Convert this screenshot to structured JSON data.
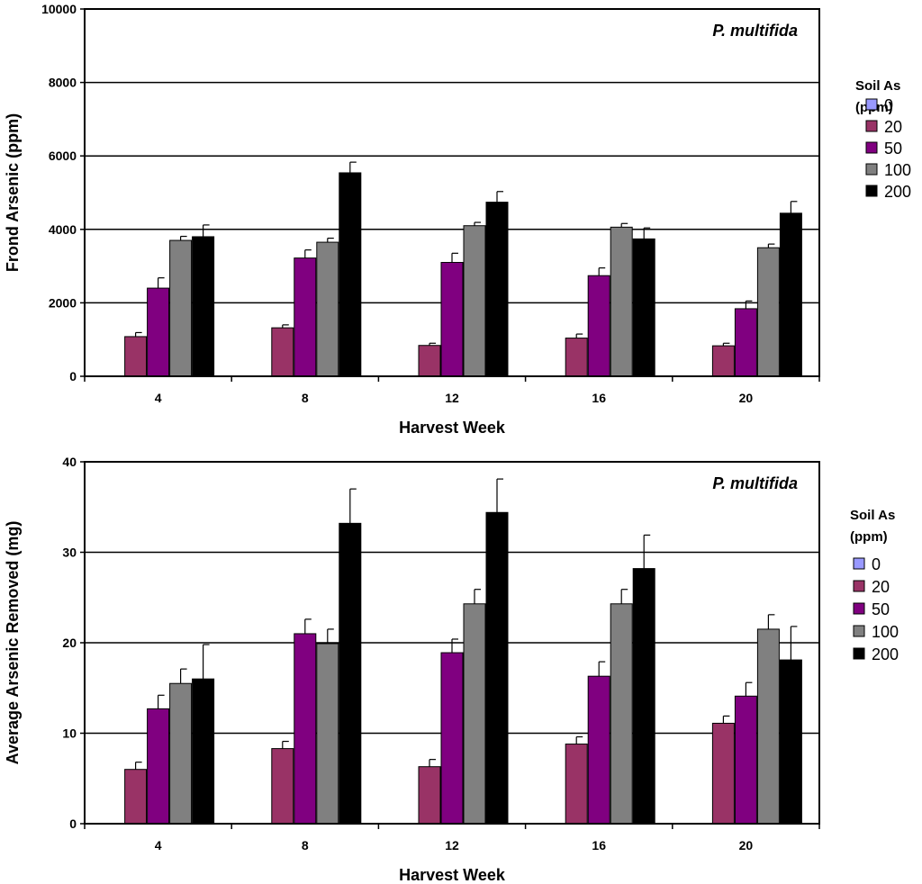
{
  "chart_data": [
    {
      "type": "bar",
      "title": "P. multifida",
      "xlabel": "Harvest Week",
      "ylabel": "Frond Arsenic (ppm)",
      "ylim": [
        0,
        10000
      ],
      "yticks": [
        0,
        2000,
        4000,
        6000,
        8000,
        10000
      ],
      "grid": true,
      "categories": [
        "4",
        "8",
        "12",
        "16",
        "20"
      ],
      "legend": {
        "title_line1": "Soil As",
        "title_line2": "(ppm)",
        "placement": "right"
      },
      "series": [
        {
          "name": "0",
          "color": "#9999ff",
          "values": [
            0,
            0,
            0,
            0,
            0
          ],
          "errors": [
            0,
            0,
            0,
            0,
            0
          ]
        },
        {
          "name": "20",
          "color": "#993366",
          "values": [
            1080,
            1320,
            840,
            1040,
            830
          ],
          "errors": [
            110,
            80,
            60,
            110,
            70
          ]
        },
        {
          "name": "50",
          "color": "#800080",
          "values": [
            2400,
            3220,
            3100,
            2740,
            1840
          ],
          "errors": [
            280,
            220,
            250,
            210,
            210
          ]
        },
        {
          "name": "100",
          "color": "#808080",
          "values": [
            3700,
            3650,
            4100,
            4060,
            3500
          ],
          "errors": [
            110,
            110,
            90,
            100,
            100
          ]
        },
        {
          "name": "200",
          "color": "#000000",
          "values": [
            3800,
            5540,
            4740,
            3740,
            4440
          ],
          "errors": [
            320,
            290,
            290,
            300,
            320
          ]
        }
      ]
    },
    {
      "type": "bar",
      "title": "P. multifida",
      "xlabel": "Harvest Week",
      "ylabel": "Average Arsenic Removed (mg)",
      "ylim": [
        0,
        40
      ],
      "yticks": [
        0,
        10,
        20,
        30,
        40
      ],
      "grid": true,
      "categories": [
        "4",
        "8",
        "12",
        "16",
        "20"
      ],
      "legend": {
        "title_line1": "Soil As",
        "title_line2": "(ppm)",
        "placement": "right"
      },
      "series": [
        {
          "name": "0",
          "color": "#9999ff",
          "values": [
            0,
            0,
            0,
            0,
            0
          ],
          "errors": [
            0,
            0,
            0,
            0,
            0
          ]
        },
        {
          "name": "20",
          "color": "#993366",
          "values": [
            6.0,
            8.3,
            6.3,
            8.8,
            11.1
          ],
          "errors": [
            0.8,
            0.8,
            0.8,
            0.8,
            0.8
          ]
        },
        {
          "name": "50",
          "color": "#800080",
          "values": [
            12.7,
            21.0,
            18.9,
            16.3,
            14.1
          ],
          "errors": [
            1.5,
            1.6,
            1.5,
            1.6,
            1.5
          ]
        },
        {
          "name": "100",
          "color": "#808080",
          "values": [
            15.5,
            19.9,
            24.3,
            24.3,
            21.5
          ],
          "errors": [
            1.6,
            1.6,
            1.6,
            1.6,
            1.6
          ]
        },
        {
          "name": "200",
          "color": "#000000",
          "values": [
            16.0,
            33.2,
            34.4,
            28.2,
            18.1
          ],
          "errors": [
            3.8,
            3.8,
            3.7,
            3.7,
            3.7
          ]
        }
      ]
    }
  ]
}
